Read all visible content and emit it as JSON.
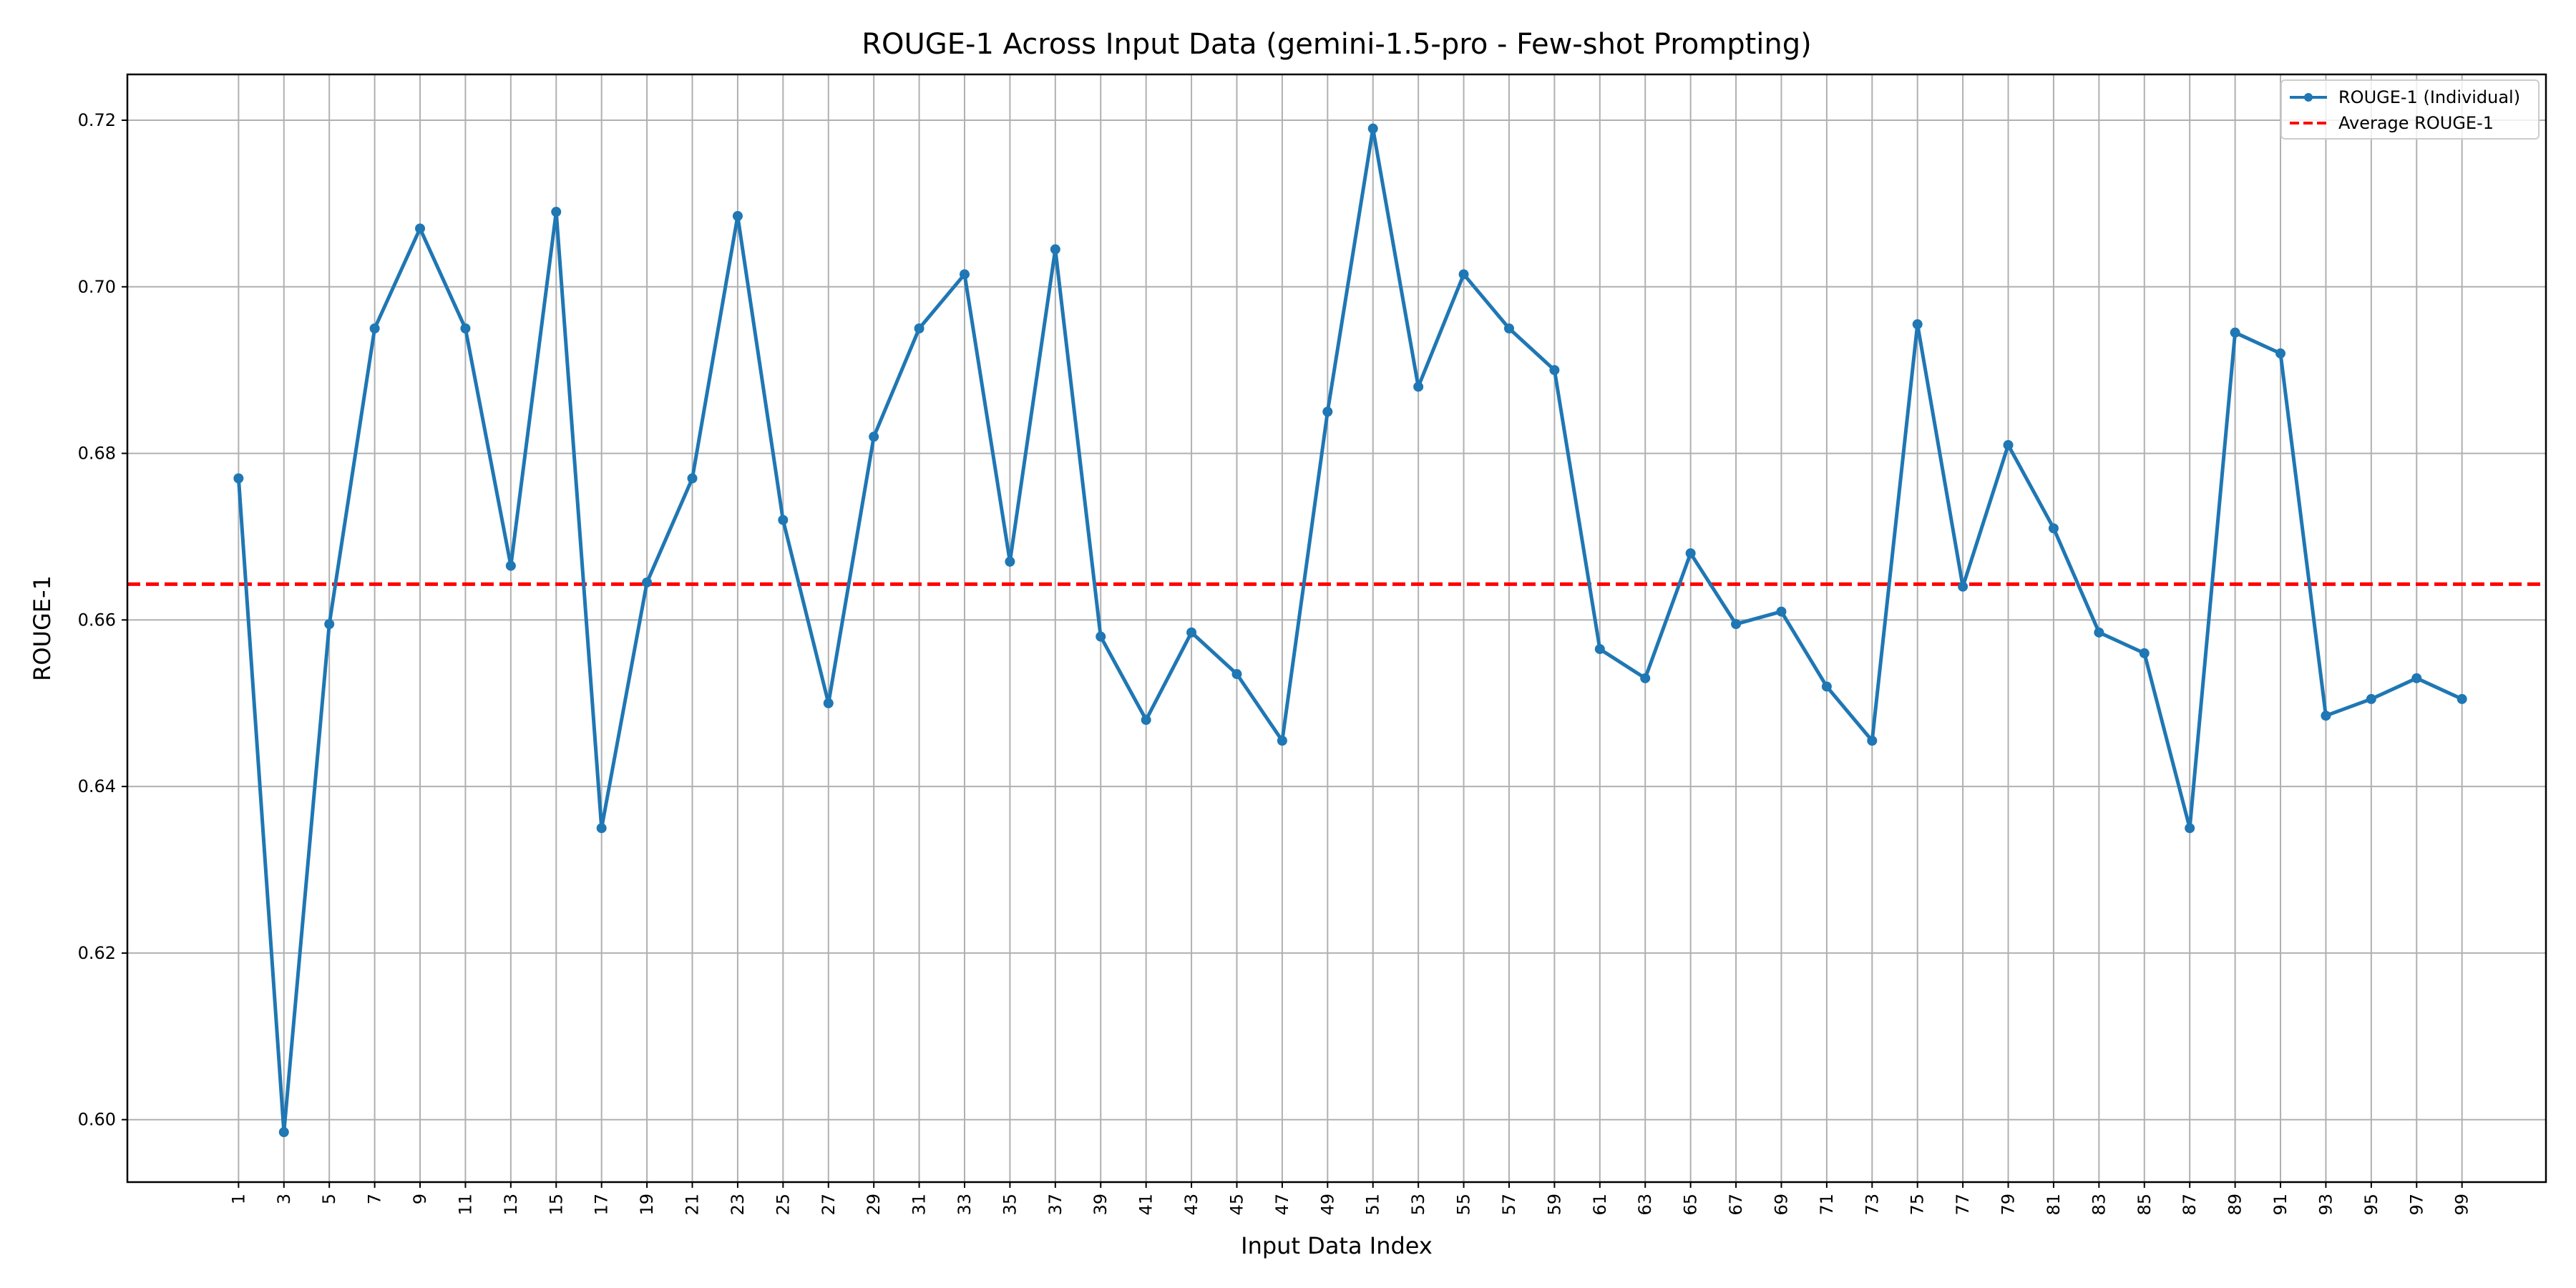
{
  "chart_data": {
    "type": "line",
    "title": "ROUGE-1 Across Input Data (gemini-1.5-pro - Few-shot Prompting)",
    "xlabel": "Input Data Index",
    "ylabel": "ROUGE-1",
    "xlim": [
      -3.9,
      102.7
    ],
    "ylim": [
      0.5925,
      0.7255
    ],
    "x_ticks": [
      1,
      3,
      5,
      7,
      9,
      11,
      13,
      15,
      17,
      19,
      21,
      23,
      25,
      27,
      29,
      31,
      33,
      35,
      37,
      39,
      41,
      43,
      45,
      47,
      49,
      51,
      53,
      55,
      57,
      59,
      61,
      63,
      65,
      67,
      69,
      71,
      73,
      75,
      77,
      79,
      81,
      83,
      85,
      87,
      89,
      91,
      93,
      95,
      97,
      99
    ],
    "y_ticks": [
      0.6,
      0.62,
      0.64,
      0.66,
      0.68,
      0.7,
      0.72
    ],
    "y_tick_labels": [
      "0.60",
      "0.62",
      "0.64",
      "0.66",
      "0.68",
      "0.70",
      "0.72"
    ],
    "grid": true,
    "legend_position": "top-right",
    "x": [
      1,
      3,
      5,
      7,
      9,
      11,
      13,
      15,
      17,
      19,
      21,
      23,
      25,
      27,
      29,
      31,
      33,
      35,
      37,
      39,
      41,
      43,
      45,
      47,
      49,
      51,
      53,
      55,
      57,
      59,
      61,
      63,
      65,
      67,
      69,
      71,
      73,
      75,
      77,
      79,
      81,
      83,
      85,
      87,
      89,
      91,
      93,
      95,
      97,
      99
    ],
    "series": [
      {
        "name": "ROUGE-1 (Individual)",
        "color": "#1f77b4",
        "style": "line-with-markers",
        "values": [
          0.677,
          0.5985,
          0.6595,
          0.695,
          0.707,
          0.695,
          0.6665,
          0.709,
          0.635,
          0.6645,
          0.677,
          0.7085,
          0.672,
          0.65,
          0.682,
          0.695,
          0.7015,
          0.667,
          0.7045,
          0.658,
          0.648,
          0.6585,
          0.6535,
          0.6455,
          0.685,
          0.719,
          0.688,
          0.7015,
          0.695,
          0.69,
          0.6565,
          0.653,
          0.668,
          0.6595,
          0.661,
          0.652,
          0.6455,
          0.6955,
          0.664,
          0.681,
          0.671,
          0.6585,
          0.656,
          0.635,
          0.6945,
          0.692,
          0.6485,
          0.6505,
          0.653,
          0.6505
        ]
      }
    ],
    "reference_lines": [
      {
        "name": "Average ROUGE-1",
        "color": "#ff0000",
        "style": "dashed",
        "value": 0.6643
      }
    ]
  }
}
